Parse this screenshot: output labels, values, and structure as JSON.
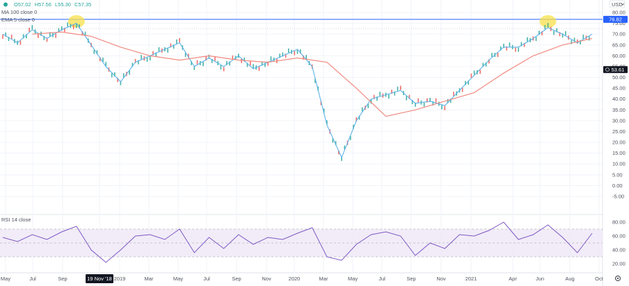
{
  "header": {
    "ohlc": {
      "o": "O57.02",
      "h": "H57.56",
      "l": "L55.30",
      "c": "C57.35"
    },
    "ma_label": "MA 100 close 0",
    "ema_label": "EMA 5 close 0",
    "rsi_label": "RSI 14 close",
    "currency": "USD"
  },
  "badges": {
    "resistance": "76.82",
    "last": "53.61"
  },
  "x_axis": {
    "labels": [
      "May",
      "Jul",
      "Sep",
      "19 Nov '18",
      "2019",
      "Mar",
      "May",
      "Jul",
      "Sep",
      "Nov",
      "2020",
      "Mar",
      "May",
      "Jul",
      "Sep",
      "Nov",
      "2021",
      "Apr",
      "Jun",
      "Aug",
      "Oct"
    ]
  },
  "colors": {
    "ema": "#5cb3e8",
    "ma": "#f08a80",
    "up": "#26a69a",
    "down": "#ef5350",
    "rsi": "#7e57c2",
    "highlight": "#f7e04b",
    "resistance": "#2962ff"
  },
  "chart_data": [
    {
      "type": "line",
      "title": "",
      "ylim": [
        -5,
        80
      ],
      "price_ticks": [
        "80.00",
        "75.00",
        "70.00",
        "65.00",
        "60.00",
        "55.00",
        "50.00",
        "45.00",
        "40.00",
        "35.00",
        "30.00",
        "25.00",
        "20.00",
        "15.00",
        "10.00",
        "5.00",
        "0.00",
        "-5.00"
      ],
      "resistance_level": 76.82,
      "last_price": 53.61,
      "series": [
        {
          "name": "EMA 5 close 0",
          "x": [
            "2018-05",
            "2018-06",
            "2018-07",
            "2018-08",
            "2018-09",
            "2018-10",
            "2018-11",
            "2018-12",
            "2019-01",
            "2019-02",
            "2019-03",
            "2019-04",
            "2019-05",
            "2019-06",
            "2019-07",
            "2019-08",
            "2019-09",
            "2019-10",
            "2019-11",
            "2019-12",
            "2020-01",
            "2020-02",
            "2020-03",
            "2020-04",
            "2020-05",
            "2020-06",
            "2020-07",
            "2020-08",
            "2020-09",
            "2020-10",
            "2020-11",
            "2020-12",
            "2021-01",
            "2021-02",
            "2021-03",
            "2021-04",
            "2021-05",
            "2021-06",
            "2021-07",
            "2021-08",
            "2021-09"
          ],
          "values": [
            70,
            66,
            72,
            68,
            72,
            75,
            65,
            55,
            48,
            57,
            60,
            63,
            66,
            55,
            59,
            55,
            60,
            54,
            57,
            60,
            63,
            55,
            28,
            13,
            30,
            40,
            42,
            44,
            38,
            39,
            37,
            44,
            51,
            58,
            64,
            64,
            68,
            73,
            70,
            66,
            70
          ]
        },
        {
          "name": "MA 100 close 0",
          "x": [
            "2018-05",
            "2018-07",
            "2018-09",
            "2018-11",
            "2019-01",
            "2019-03",
            "2019-05",
            "2019-07",
            "2019-09",
            "2019-11",
            "2020-01",
            "2020-03",
            "2020-05",
            "2020-07",
            "2020-09",
            "2020-11",
            "2021-01",
            "2021-03",
            "2021-05",
            "2021-07",
            "2021-09"
          ],
          "values": [
            null,
            70,
            71,
            69,
            64,
            60,
            58,
            60,
            58,
            57,
            59,
            57,
            45,
            32,
            35,
            39,
            43,
            52,
            60,
            65,
            68
          ]
        }
      ]
    },
    {
      "type": "line",
      "title": "",
      "ylim": [
        10,
        85
      ],
      "rsi_ticks": [
        "80.00",
        "60.00",
        "40.00",
        "20.00"
      ],
      "bands": [
        30,
        70
      ],
      "series": [
        {
          "name": "RSI 14 close",
          "x": [
            "2018-05",
            "2018-06",
            "2018-07",
            "2018-08",
            "2018-09",
            "2018-10",
            "2018-11",
            "2018-12",
            "2019-01",
            "2019-02",
            "2019-03",
            "2019-04",
            "2019-05",
            "2019-06",
            "2019-07",
            "2019-08",
            "2019-09",
            "2019-10",
            "2019-11",
            "2019-12",
            "2020-01",
            "2020-02",
            "2020-03",
            "2020-04",
            "2020-05",
            "2020-06",
            "2020-07",
            "2020-08",
            "2020-09",
            "2020-10",
            "2020-11",
            "2020-12",
            "2021-01",
            "2021-02",
            "2021-03",
            "2021-04",
            "2021-05",
            "2021-06",
            "2021-07",
            "2021-08",
            "2021-09"
          ],
          "values": [
            58,
            52,
            62,
            55,
            66,
            74,
            40,
            22,
            40,
            60,
            62,
            55,
            70,
            36,
            58,
            42,
            62,
            48,
            58,
            55,
            64,
            72,
            30,
            25,
            48,
            62,
            66,
            60,
            32,
            50,
            42,
            62,
            60,
            68,
            80,
            55,
            62,
            76,
            58,
            36,
            64
          ]
        }
      ]
    }
  ]
}
